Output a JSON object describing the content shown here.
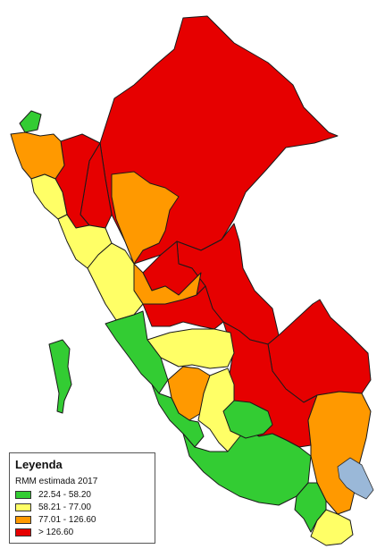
{
  "legend": {
    "title": "Leyenda",
    "subtitle": "RMM estimada 2017",
    "classes": [
      {
        "label": "22.54 - 58.20",
        "color": "#33cc33"
      },
      {
        "label": "58.21 - 77.00",
        "color": "#ffff66"
      },
      {
        "label": "77.01 - 126.60",
        "color": "#ff9900"
      },
      {
        "label": "> 126.60",
        "color": "#e60000"
      }
    ]
  },
  "lake": {
    "color": "#9ab8d8"
  }
}
